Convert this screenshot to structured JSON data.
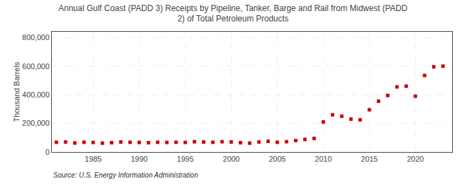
{
  "chart_data": {
    "type": "scatter",
    "title": "Annual Gulf Coast (PADD 3) Receipts by Pipeline, Tanker, Barge and Rail from Midwest (PADD\n2) of Total Petroleum Products",
    "ylabel": "Thousand Barrels",
    "annotations": [
      "Source: U.S. Energy Information Administration"
    ],
    "x": [
      1981,
      1982,
      1983,
      1984,
      1985,
      1986,
      1987,
      1988,
      1989,
      1990,
      1991,
      1992,
      1993,
      1994,
      1995,
      1996,
      1997,
      1998,
      1999,
      2000,
      2001,
      2002,
      2003,
      2004,
      2005,
      2006,
      2007,
      2008,
      2009,
      2010,
      2011,
      2012,
      2013,
      2014,
      2015,
      2016,
      2017,
      2018,
      2019,
      2020,
      2021,
      2022,
      2023
    ],
    "values": [
      68000,
      70000,
      63000,
      68000,
      67000,
      62000,
      65000,
      70000,
      68000,
      67000,
      65000,
      68000,
      67000,
      68000,
      67000,
      72000,
      70000,
      68000,
      72000,
      70000,
      65000,
      62000,
      70000,
      75000,
      68000,
      72000,
      80000,
      88000,
      95000,
      210000,
      260000,
      250000,
      230000,
      225000,
      295000,
      355000,
      395000,
      455000,
      460000,
      390000,
      535000,
      595000,
      600000
    ],
    "color": "#cc0000",
    "marker": "square",
    "xlim": [
      1980.5,
      2024
    ],
    "xticks": [
      1985,
      1990,
      1995,
      2000,
      2005,
      2010,
      2015,
      2020
    ],
    "ylim": [
      0,
      840000
    ],
    "yticks": [
      0,
      {
        "value": 200000,
        "label": "200,000"
      },
      {
        "value": 400000,
        "label": "400,000"
      },
      {
        "value": 600000,
        "label": "600,000"
      },
      {
        "value": 800000,
        "label": "800,000"
      }
    ],
    "grid": true
  }
}
